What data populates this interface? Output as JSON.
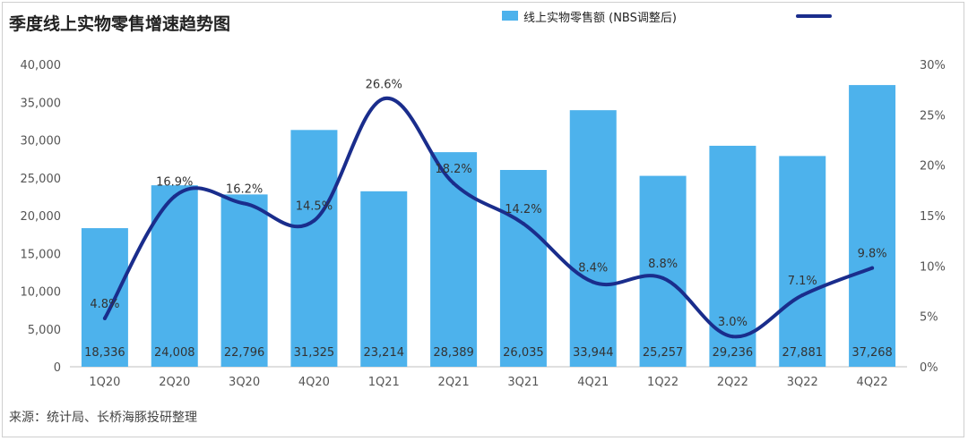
{
  "title": "季度线上实物零售增速趋势图",
  "source": "来源：统计局、长桥海豚投研整理",
  "colors": {
    "bar": "#4db2ec",
    "line": "#1a2d8c"
  },
  "chart_data": {
    "type": "bar",
    "combo": "bar+line",
    "categories": [
      "1Q20",
      "2Q20",
      "3Q20",
      "4Q20",
      "1Q21",
      "2Q21",
      "3Q21",
      "4Q21",
      "1Q22",
      "2Q22",
      "3Q22",
      "4Q22"
    ],
    "series": [
      {
        "name": "线上实物零售额 (NBS调整后)",
        "type": "bar",
        "axis": "left",
        "values": [
          18336,
          24008,
          22796,
          31325,
          23214,
          28389,
          26035,
          33944,
          25257,
          29236,
          27881,
          37268
        ],
        "labels": [
          "18,336",
          "24,008",
          "22,796",
          "31,325",
          "23,214",
          "28,389",
          "26,035",
          "33,944",
          "25,257",
          "29,236",
          "27,881",
          "37,268"
        ]
      },
      {
        "name": "",
        "type": "line",
        "axis": "right",
        "values": [
          4.8,
          16.9,
          16.2,
          14.5,
          26.6,
          18.2,
          14.2,
          8.4,
          8.8,
          3.0,
          7.1,
          9.8
        ],
        "labels": [
          "4.8%",
          "16.9%",
          "16.2%",
          "14.5%",
          "26.6%",
          "18.2%",
          "14.2%",
          "8.4%",
          "8.8%",
          "3.0%",
          "7.1%",
          "9.8%"
        ]
      }
    ],
    "y_left": {
      "ylim": [
        0,
        40000
      ],
      "ticks": [
        "0",
        "5,000",
        "10,000",
        "15,000",
        "20,000",
        "25,000",
        "30,000",
        "35,000",
        "40,000"
      ]
    },
    "y_right": {
      "ylim": [
        0,
        30
      ],
      "ticks": [
        "0%",
        "5%",
        "10%",
        "15%",
        "20%",
        "25%",
        "30%"
      ]
    },
    "grid": false,
    "legend": "top"
  }
}
